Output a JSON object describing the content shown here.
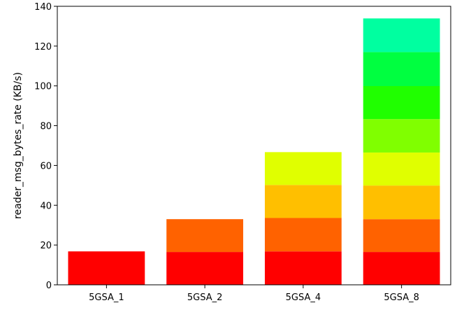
{
  "chart_data": {
    "type": "bar",
    "stacked": true,
    "title": "",
    "xlabel": "",
    "ylabel": "reader_msg_bytes_rate (KB/s)",
    "categories": [
      "5GSA_1",
      "5GSA_2",
      "5GSA_4",
      "5GSA_8"
    ],
    "ylim": [
      0,
      140
    ],
    "yticks": [
      0,
      20,
      40,
      60,
      80,
      100,
      120,
      140
    ],
    "grid": false,
    "legend": "none",
    "segments": [
      {
        "values": [
          16.8,
          16.5,
          16.8,
          16.5
        ],
        "color": "#ff0000"
      },
      {
        "values": [
          0,
          16.5,
          16.8,
          16.5
        ],
        "color": "#ff6200"
      },
      {
        "values": [
          0,
          0,
          16.6,
          16.9
        ],
        "color": "#ffbf00"
      },
      {
        "values": [
          0,
          0,
          16.5,
          16.6
        ],
        "color": "#e0ff00"
      },
      {
        "values": [
          0,
          0,
          0,
          16.8
        ],
        "color": "#80ff00"
      },
      {
        "values": [
          0,
          0,
          0,
          16.6
        ],
        "color": "#20ff00"
      },
      {
        "values": [
          0,
          0,
          0,
          17.1
        ],
        "color": "#00ff40"
      },
      {
        "values": [
          0,
          0,
          0,
          16.9
        ],
        "color": "#00ffa0"
      }
    ]
  }
}
